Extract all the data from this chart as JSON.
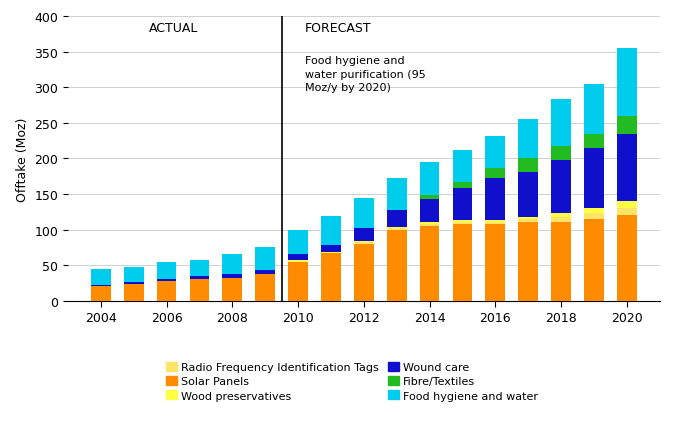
{
  "years": [
    2004,
    2005,
    2006,
    2007,
    2008,
    2009,
    2010,
    2011,
    2012,
    2013,
    2014,
    2015,
    2016,
    2017,
    2018,
    2019,
    2020
  ],
  "solar_panels": [
    20,
    24,
    27,
    30,
    32,
    38,
    55,
    67,
    80,
    100,
    105,
    108,
    108,
    110,
    110,
    115,
    120
  ],
  "rfid": [
    0,
    0,
    0,
    0,
    0,
    0,
    0,
    0,
    2,
    2,
    3,
    3,
    3,
    5,
    8,
    8,
    10
  ],
  "wood_pres": [
    0,
    0,
    0,
    0,
    0,
    0,
    2,
    2,
    2,
    2,
    3,
    3,
    3,
    3,
    5,
    7,
    10
  ],
  "wound_care": [
    2,
    2,
    3,
    5,
    5,
    5,
    8,
    10,
    18,
    23,
    32,
    45,
    58,
    63,
    75,
    85,
    95
  ],
  "fibre_textile": [
    0,
    0,
    0,
    0,
    0,
    0,
    0,
    0,
    0,
    0,
    5,
    8,
    15,
    20,
    20,
    20,
    25
  ],
  "food_hygiene": [
    23,
    22,
    24,
    22,
    28,
    33,
    35,
    40,
    42,
    45,
    47,
    45,
    45,
    55,
    65,
    70,
    95
  ],
  "colors": {
    "rfid": "#FFE566",
    "solar_panels": "#FF8C00",
    "wood_pres": "#FFFF44",
    "wound_care": "#1010CC",
    "fibre_textile": "#22BB22",
    "food_hygiene": "#00CCEE"
  },
  "ylabel": "Offtake (Moz)",
  "ylim": [
    0,
    400
  ],
  "yticks": [
    0,
    50,
    100,
    150,
    200,
    250,
    300,
    350,
    400
  ],
  "actual_label": "ACTUAL",
  "forecast_label": "FORECAST",
  "annotation": "Food hygiene and\nwater purification (95\nMoz/y by 2020)",
  "divider_year": 2009.5,
  "bg_color": "#FFFFFF",
  "legend_items": [
    {
      "label": "Radio Frequency Identification Tags",
      "color": "#FFE566"
    },
    {
      "label": "Solar Panels",
      "color": "#FF8C00"
    },
    {
      "label": "Wood preservatives",
      "color": "#FFFF44"
    },
    {
      "label": "Wound care",
      "color": "#1010CC"
    },
    {
      "label": "Fibre/Textiles",
      "color": "#22BB22"
    },
    {
      "label": "Food hygiene and water",
      "color": "#00CCEE"
    }
  ]
}
